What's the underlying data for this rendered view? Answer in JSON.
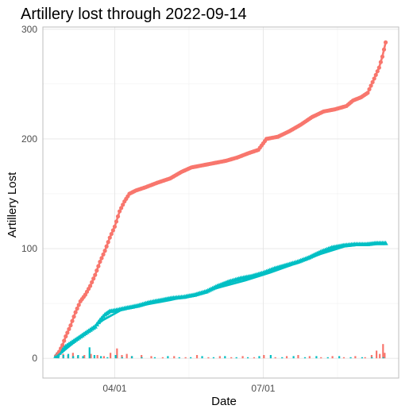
{
  "chart_data": {
    "type": "scatter",
    "title": "Artillery lost through 2022-09-14",
    "xlabel": "Date",
    "ylabel": "Artillery Lost",
    "x_type": "date",
    "xlim": [
      "2022-02-16",
      "2022-09-22"
    ],
    "ylim": [
      -18,
      302
    ],
    "x_ticks": [
      {
        "date": "2022-04-01",
        "label": "04/01"
      },
      {
        "date": "2022-07-01",
        "label": "07/01"
      }
    ],
    "y_ticks": [
      0,
      100,
      200,
      300
    ],
    "grid": true,
    "legend": "none",
    "colors": {
      "series_a": "#f8766d",
      "series_b": "#00bfc4"
    },
    "series": [
      {
        "marker": "circle",
        "color": "#f8766d",
        "cumulative": [
          [
            "2022-02-24",
            2
          ],
          [
            "2022-02-26",
            6
          ],
          [
            "2022-02-28",
            12
          ],
          [
            "2022-03-02",
            20
          ],
          [
            "2022-03-05",
            30
          ],
          [
            "2022-03-08",
            42
          ],
          [
            "2022-03-11",
            52
          ],
          [
            "2022-03-14",
            58
          ],
          [
            "2022-03-17",
            66
          ],
          [
            "2022-03-20",
            76
          ],
          [
            "2022-03-23",
            88
          ],
          [
            "2022-03-26",
            98
          ],
          [
            "2022-03-29",
            110
          ],
          [
            "2022-04-01",
            120
          ],
          [
            "2022-04-04",
            134
          ],
          [
            "2022-04-07",
            143
          ],
          [
            "2022-04-10",
            150
          ],
          [
            "2022-04-14",
            153
          ],
          [
            "2022-04-20",
            156
          ],
          [
            "2022-04-27",
            160
          ],
          [
            "2022-05-05",
            164
          ],
          [
            "2022-05-12",
            170
          ],
          [
            "2022-05-18",
            174
          ],
          [
            "2022-05-25",
            176
          ],
          [
            "2022-06-01",
            178
          ],
          [
            "2022-06-08",
            180
          ],
          [
            "2022-06-15",
            183
          ],
          [
            "2022-06-22",
            187
          ],
          [
            "2022-06-28",
            190
          ],
          [
            "2022-07-03",
            200
          ],
          [
            "2022-07-10",
            202
          ],
          [
            "2022-07-17",
            207
          ],
          [
            "2022-07-24",
            213
          ],
          [
            "2022-07-31",
            220
          ],
          [
            "2022-08-07",
            225
          ],
          [
            "2022-08-14",
            227
          ],
          [
            "2022-08-21",
            230
          ],
          [
            "2022-08-25",
            235
          ],
          [
            "2022-08-30",
            238
          ],
          [
            "2022-09-03",
            242
          ],
          [
            "2022-09-07",
            255
          ],
          [
            "2022-09-10",
            265
          ],
          [
            "2022-09-12",
            275
          ],
          [
            "2022-09-14",
            288
          ]
        ],
        "daily": [
          [
            "2022-02-25",
            2
          ],
          [
            "2022-03-01",
            4
          ],
          [
            "2022-03-04",
            3
          ],
          [
            "2022-03-07",
            5
          ],
          [
            "2022-03-10",
            2
          ],
          [
            "2022-03-14",
            3
          ],
          [
            "2022-03-18",
            4
          ],
          [
            "2022-03-22",
            3
          ],
          [
            "2022-03-26",
            2
          ],
          [
            "2022-03-30",
            5
          ],
          [
            "2022-04-03",
            9
          ],
          [
            "2022-04-06",
            3
          ],
          [
            "2022-04-09",
            4
          ],
          [
            "2022-04-12",
            2
          ],
          [
            "2022-04-18",
            3
          ],
          [
            "2022-04-24",
            2
          ],
          [
            "2022-05-01",
            1
          ],
          [
            "2022-05-08",
            2
          ],
          [
            "2022-05-15",
            1
          ],
          [
            "2022-05-22",
            3
          ],
          [
            "2022-05-29",
            1
          ],
          [
            "2022-06-05",
            2
          ],
          [
            "2022-06-12",
            1
          ],
          [
            "2022-06-19",
            2
          ],
          [
            "2022-06-26",
            1
          ],
          [
            "2022-07-02",
            3
          ],
          [
            "2022-07-09",
            1
          ],
          [
            "2022-07-16",
            2
          ],
          [
            "2022-07-23",
            3
          ],
          [
            "2022-07-30",
            2
          ],
          [
            "2022-08-06",
            1
          ],
          [
            "2022-08-13",
            2
          ],
          [
            "2022-08-20",
            1
          ],
          [
            "2022-08-27",
            2
          ],
          [
            "2022-09-02",
            1
          ],
          [
            "2022-09-06",
            3
          ],
          [
            "2022-09-09",
            7
          ],
          [
            "2022-09-11",
            4
          ],
          [
            "2022-09-13",
            13
          ],
          [
            "2022-09-14",
            5
          ]
        ]
      },
      {
        "marker": "triangle",
        "color": "#00bfc4",
        "cumulative": [
          [
            "2022-02-24",
            2
          ],
          [
            "2022-02-26",
            5
          ],
          [
            "2022-02-28",
            8
          ],
          [
            "2022-03-02",
            11
          ],
          [
            "2022-03-05",
            14
          ],
          [
            "2022-03-08",
            17
          ],
          [
            "2022-03-11",
            20
          ],
          [
            "2022-03-14",
            23
          ],
          [
            "2022-03-17",
            26
          ],
          [
            "2022-03-20",
            29
          ],
          [
            "2022-03-23",
            35
          ],
          [
            "2022-03-26",
            40
          ],
          [
            "2022-03-29",
            43
          ],
          [
            "2022-04-02",
            44
          ],
          [
            "2022-04-08",
            46
          ],
          [
            "2022-04-15",
            48
          ],
          [
            "2022-04-22",
            51
          ],
          [
            "2022-04-29",
            53
          ],
          [
            "2022-05-06",
            55
          ],
          [
            "2022-05-13",
            56
          ],
          [
            "2022-05-20",
            58
          ],
          [
            "2022-05-27",
            61
          ],
          [
            "2022-06-03",
            66
          ],
          [
            "2022-06-10",
            70
          ],
          [
            "2022-06-17",
            73
          ],
          [
            "2022-06-24",
            75
          ],
          [
            "2022-07-01",
            78
          ],
          [
            "2022-07-08",
            82
          ],
          [
            "2022-07-15",
            85
          ],
          [
            "2022-07-22",
            88
          ],
          [
            "2022-07-29",
            92
          ],
          [
            "2022-08-05",
            97
          ],
          [
            "2022-08-12",
            101
          ],
          [
            "2022-08-19",
            103
          ],
          [
            "2022-08-26",
            104
          ],
          [
            "2022-09-02",
            104
          ],
          [
            "2022-09-08",
            105
          ],
          [
            "2022-09-14",
            105
          ]
        ],
        "daily": [
          [
            "2022-02-25",
            2
          ],
          [
            "2022-02-28",
            3
          ],
          [
            "2022-03-03",
            4
          ],
          [
            "2022-03-06",
            2
          ],
          [
            "2022-03-09",
            3
          ],
          [
            "2022-03-12",
            2
          ],
          [
            "2022-03-16",
            10
          ],
          [
            "2022-03-19",
            3
          ],
          [
            "2022-03-23",
            2
          ],
          [
            "2022-03-27",
            1
          ],
          [
            "2022-04-01",
            3
          ],
          [
            "2022-04-05",
            1
          ],
          [
            "2022-04-11",
            2
          ],
          [
            "2022-04-17",
            1
          ],
          [
            "2022-04-25",
            1
          ],
          [
            "2022-05-03",
            2
          ],
          [
            "2022-05-10",
            1
          ],
          [
            "2022-05-17",
            1
          ],
          [
            "2022-05-24",
            2
          ],
          [
            "2022-05-31",
            1
          ],
          [
            "2022-06-07",
            2
          ],
          [
            "2022-06-14",
            1
          ],
          [
            "2022-06-21",
            1
          ],
          [
            "2022-06-28",
            2
          ],
          [
            "2022-07-05",
            3
          ],
          [
            "2022-07-12",
            1
          ],
          [
            "2022-07-19",
            2
          ],
          [
            "2022-07-26",
            1
          ],
          [
            "2022-08-02",
            2
          ],
          [
            "2022-08-09",
            1
          ],
          [
            "2022-08-16",
            2
          ],
          [
            "2022-08-23",
            1
          ],
          [
            "2022-08-30",
            1
          ],
          [
            "2022-09-05",
            1
          ],
          [
            "2022-09-12",
            1
          ]
        ],
        "fit": [
          [
            "2022-02-24",
            1
          ],
          [
            "2022-03-05",
            12
          ],
          [
            "2022-03-15",
            24
          ],
          [
            "2022-03-25",
            35
          ],
          [
            "2022-04-05",
            44
          ],
          [
            "2022-04-20",
            49
          ],
          [
            "2022-05-05",
            53
          ],
          [
            "2022-05-20",
            58
          ],
          [
            "2022-06-05",
            65
          ],
          [
            "2022-06-20",
            71
          ],
          [
            "2022-07-05",
            78
          ],
          [
            "2022-07-20",
            86
          ],
          [
            "2022-08-05",
            95
          ],
          [
            "2022-08-20",
            102
          ],
          [
            "2022-09-01",
            104
          ],
          [
            "2022-09-14",
            105
          ]
        ]
      }
    ]
  }
}
